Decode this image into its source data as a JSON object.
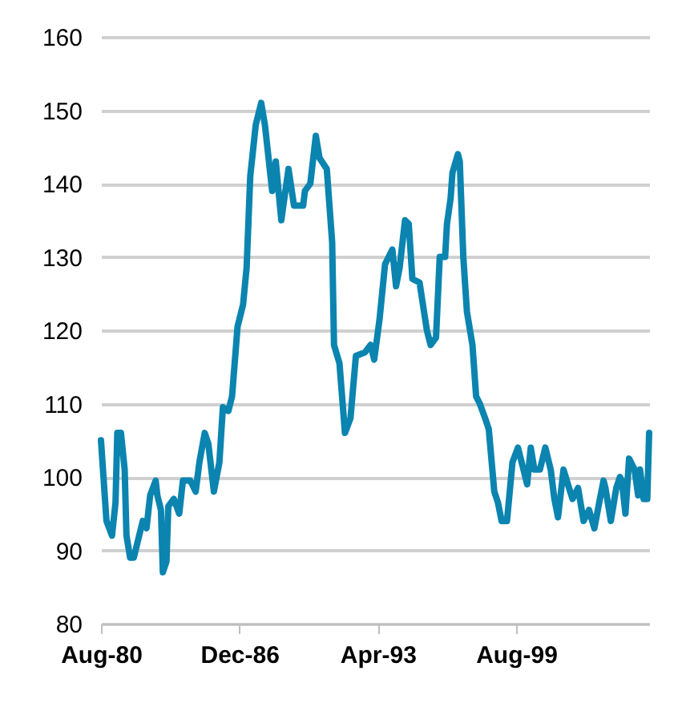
{
  "chart_data": {
    "type": "line",
    "x": [
      "1980-08",
      "1980-11",
      "1981-02",
      "1981-04",
      "1981-05",
      "1981-07",
      "1981-09",
      "1981-10",
      "1981-12",
      "1982-02",
      "1982-05",
      "1982-07",
      "1982-09",
      "1982-11",
      "1983-02",
      "1983-03",
      "1983-05",
      "1983-06",
      "1983-08",
      "1983-09",
      "1983-12",
      "1984-03",
      "1984-05",
      "1984-09",
      "1984-12",
      "1985-02",
      "1985-05",
      "1985-07",
      "1985-10",
      "1986-01",
      "1986-03",
      "1986-06",
      "1986-08",
      "1986-11",
      "1987-02",
      "1987-04",
      "1987-06",
      "1987-09",
      "1987-12",
      "1988-02",
      "1988-06",
      "1988-08",
      "1988-11",
      "1989-03",
      "1989-06",
      "1989-11",
      "1989-12",
      "1990-03",
      "1990-06",
      "1990-08",
      "1990-12",
      "1991-03",
      "1991-04",
      "1991-07",
      "1991-10",
      "1992-01",
      "1992-04",
      "1992-09",
      "1992-12",
      "1993-02",
      "1993-05",
      "1993-08",
      "1993-10",
      "1993-12",
      "1994-02",
      "1994-04",
      "1994-07",
      "1994-09",
      "1994-11",
      "1995-03",
      "1995-07",
      "1995-09",
      "1995-12",
      "1996-02",
      "1996-05",
      "1996-06",
      "1996-08",
      "1996-09",
      "1996-12",
      "1997-01",
      "1997-03",
      "1997-05",
      "1997-08",
      "1997-10",
      "1997-12",
      "1998-03",
      "1998-05",
      "1998-08",
      "1998-10",
      "1998-12",
      "1999-03",
      "1999-06",
      "1999-09",
      "1999-11",
      "2000-02",
      "2000-04",
      "2000-06",
      "2000-09",
      "2000-12",
      "2001-03",
      "2001-05",
      "2001-07",
      "2001-10",
      "2002-01",
      "2002-03",
      "2002-06",
      "2002-09",
      "2002-12",
      "2003-03",
      "2003-06",
      "2003-08",
      "2003-09",
      "2003-12",
      "2004-03",
      "2004-05",
      "2004-06",
      "2004-08",
      "2004-10",
      "2005-01",
      "2005-03",
      "2005-04",
      "2005-06",
      "2005-08",
      "2005-09"
    ],
    "series": [
      {
        "color": "#0b84b0",
        "values": [
          105,
          94,
          92,
          96.5,
          106,
          106,
          101,
          92,
          89,
          89,
          92,
          94,
          93,
          97.5,
          99.5,
          97.5,
          95.5,
          87,
          88.5,
          96,
          97,
          95,
          99.5,
          99.5,
          98,
          102,
          106,
          104.5,
          98,
          102,
          109.5,
          109,
          111,
          120.5,
          123.5,
          128.5,
          141,
          148,
          151,
          148,
          139,
          143,
          135,
          142,
          137,
          137,
          139,
          140,
          146.5,
          143.5,
          142,
          132,
          118,
          115.5,
          106,
          108,
          116.5,
          117,
          118,
          116,
          121.5,
          129,
          130,
          131,
          126,
          128.5,
          135,
          134.5,
          127,
          126.5,
          120,
          118,
          119,
          130,
          130,
          134.5,
          138,
          141.5,
          144,
          143,
          130,
          122.5,
          118,
          111,
          110,
          108,
          106.5,
          98,
          96.5,
          94,
          94,
          102,
          104,
          102,
          99,
          104,
          101,
          101,
          104,
          101,
          97,
          94.5,
          101,
          98.5,
          97,
          98.5,
          94,
          95.5,
          93,
          97,
          99.5,
          98.5,
          94,
          98.5,
          100,
          99.5,
          95,
          102.5,
          101,
          97.5,
          101,
          97,
          97,
          106
        ]
      }
    ],
    "xlim": [
      "1980-08",
      "2005-09"
    ],
    "xticks": [
      {
        "value": "1980-08",
        "label": "Aug-80"
      },
      {
        "value": "1986-12",
        "label": "Dec-86"
      },
      {
        "value": "1993-04",
        "label": "Apr-93"
      },
      {
        "value": "1999-08",
        "label": "Aug-99"
      }
    ],
    "ylim": [
      80,
      160
    ],
    "yticks": [
      80,
      90,
      100,
      110,
      120,
      130,
      140,
      150,
      160
    ],
    "grid": "y",
    "marker": "none",
    "line_style": "solid"
  }
}
